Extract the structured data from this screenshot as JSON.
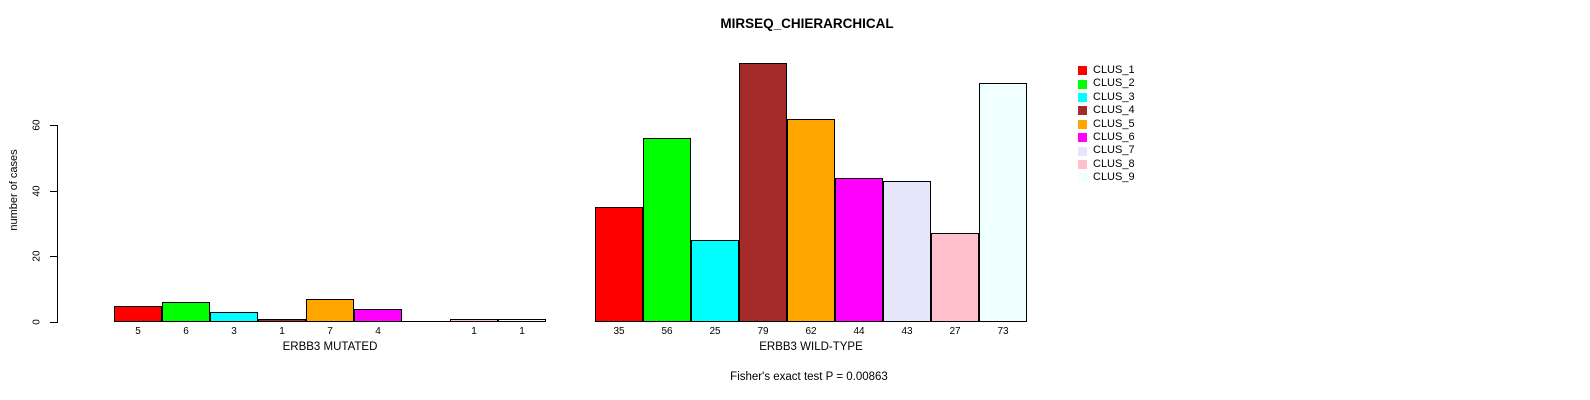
{
  "chart_data": {
    "type": "bar",
    "title": "MIRSEQ_CHIERARCHICAL",
    "ylabel": "number of cases",
    "xlabel": "",
    "annotation": "Fisher's exact test P = 0.00863",
    "yticks": [
      0,
      20,
      40,
      60
    ],
    "ylim": [
      0,
      80
    ],
    "grid": false,
    "legend_position": "right-top",
    "categories": [
      "ERBB3 MUTATED",
      "ERBB3 WILD-TYPE"
    ],
    "series": [
      {
        "name": "CLUS_1",
        "color": "#FF0000",
        "values": [
          5,
          35
        ]
      },
      {
        "name": "CLUS_2",
        "color": "#00FF00",
        "values": [
          6,
          56
        ]
      },
      {
        "name": "CLUS_3",
        "color": "#00FFFF",
        "values": [
          3,
          25
        ]
      },
      {
        "name": "CLUS_4",
        "color": "#A52A2A",
        "values": [
          1,
          79
        ]
      },
      {
        "name": "CLUS_5",
        "color": "#FFA500",
        "values": [
          7,
          62
        ]
      },
      {
        "name": "CLUS_6",
        "color": "#FF00FF",
        "values": [
          4,
          44
        ]
      },
      {
        "name": "CLUS_7",
        "color": "#E6E6FA",
        "values": [
          0,
          43
        ]
      },
      {
        "name": "CLUS_8",
        "color": "#FFC0CB",
        "values": [
          1,
          27
        ]
      },
      {
        "name": "CLUS_9",
        "color": "#F0FFFF",
        "values": [
          1,
          73
        ]
      }
    ],
    "value_labels_shown_for_nonzero_only": true,
    "bar_border_color": "#000000"
  }
}
